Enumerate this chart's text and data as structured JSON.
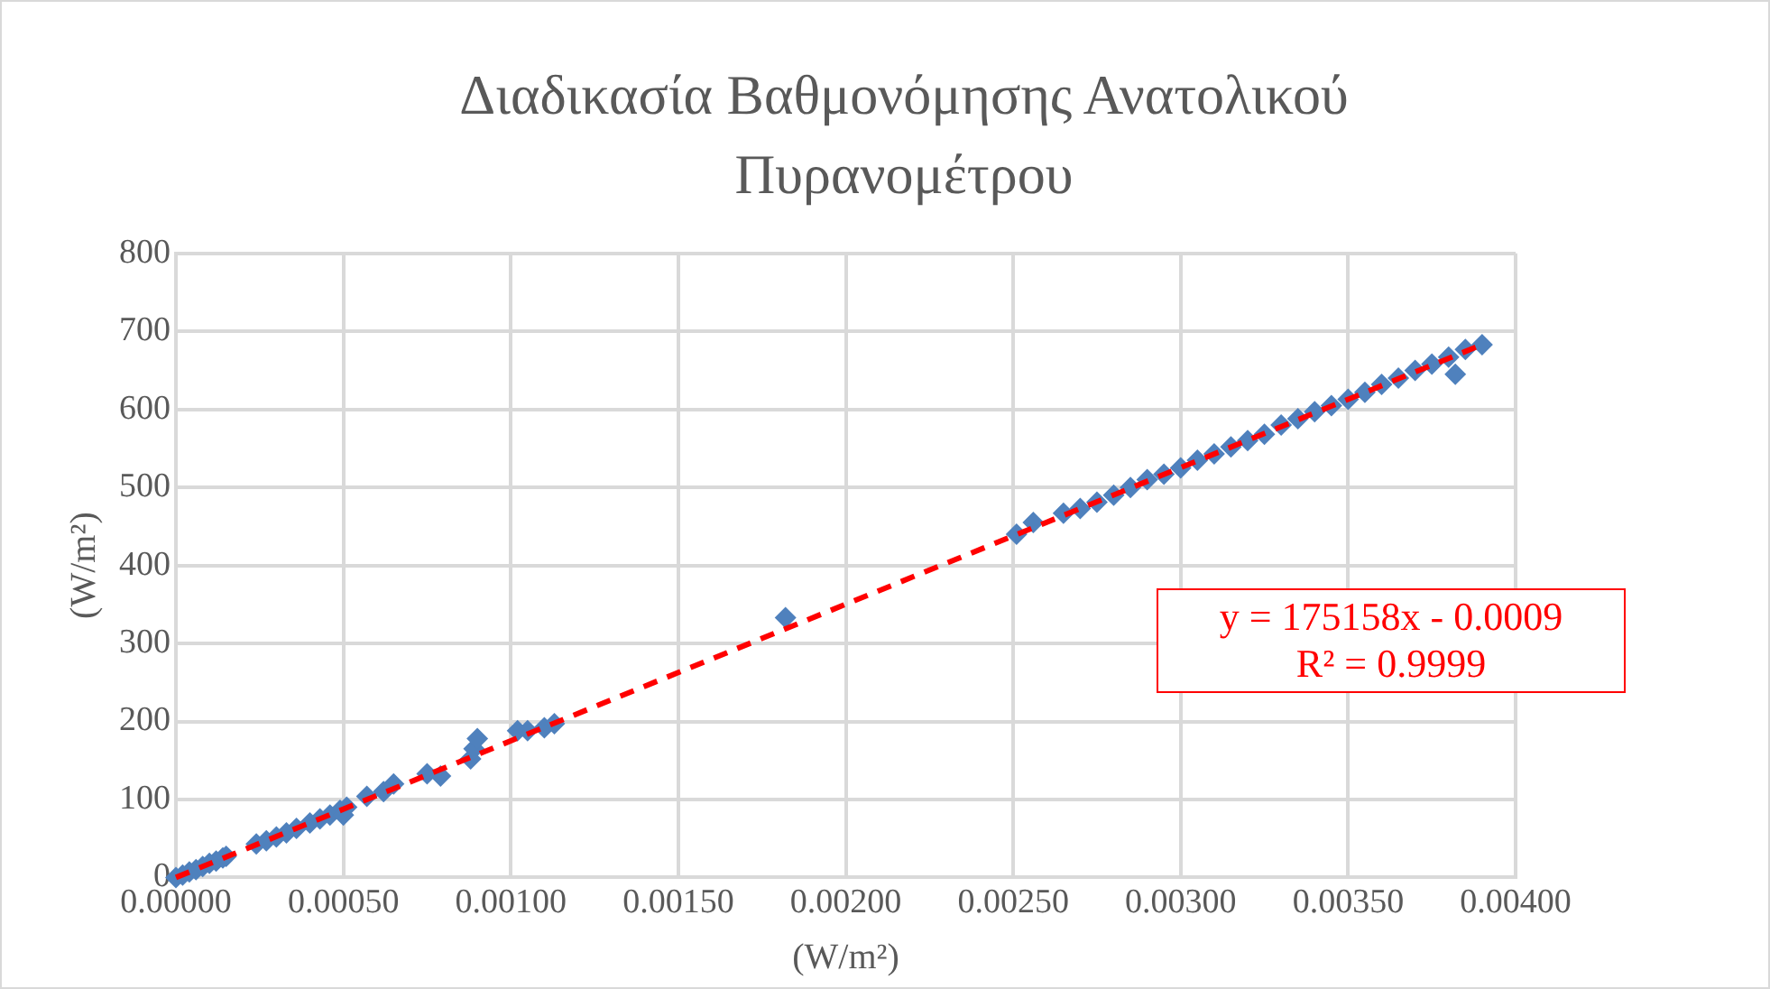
{
  "chart_data": {
    "type": "scatter",
    "title": "Διαδικασία Βαθμονόμησης Ανατολικού Πυρανομέτρου",
    "xlabel": "(W/m²)",
    "ylabel": "(W/m²)",
    "xlim": [
      0,
      0.004
    ],
    "xticks": [
      {
        "value": 0,
        "label": "0.00000"
      },
      {
        "value": 0.0005,
        "label": "0.00050"
      },
      {
        "value": 0.001,
        "label": "0.00100"
      },
      {
        "value": 0.0015,
        "label": "0.00150"
      },
      {
        "value": 0.002,
        "label": "0.00200"
      },
      {
        "value": 0.0025,
        "label": "0.00250"
      },
      {
        "value": 0.003,
        "label": "0.00300"
      },
      {
        "value": 0.0035,
        "label": "0.00350"
      },
      {
        "value": 0.004,
        "label": "0.00400"
      }
    ],
    "ylim": [
      0,
      800
    ],
    "yticks": [
      0,
      100,
      200,
      300,
      400,
      500,
      600,
      700,
      800
    ],
    "grid": true,
    "legend": false,
    "marker": "diamond",
    "series": [
      {
        "color": "#4f81bd",
        "x": [
          0,
          2e-05,
          4e-05,
          6e-05,
          8e-05,
          0.0001,
          0.00012,
          0.00014,
          0.00015,
          0.00024,
          0.00027,
          0.0003,
          0.00033,
          0.00036,
          0.0004,
          0.00043,
          0.00046,
          0.00049,
          0.0005,
          0.00051,
          0.00057,
          0.00062,
          0.00065,
          0.00075,
          0.00079,
          0.00088,
          0.00089,
          0.0009,
          0.00102,
          0.00105,
          0.0011,
          0.00113,
          0.00182,
          0.00251,
          0.00256,
          0.00265,
          0.0027,
          0.00275,
          0.0028,
          0.00285,
          0.0029,
          0.00295,
          0.003,
          0.00305,
          0.0031,
          0.00315,
          0.0032,
          0.00325,
          0.0033,
          0.00335,
          0.0034,
          0.00345,
          0.0035,
          0.00355,
          0.0036,
          0.00365,
          0.0037,
          0.00375,
          0.0038,
          0.00382,
          0.00385,
          0.0039
        ],
        "values": [
          0,
          3,
          7,
          10,
          14,
          18,
          21,
          25,
          27,
          43,
          47,
          52,
          57,
          63,
          70,
          75,
          80,
          86,
          80,
          90,
          104,
          110,
          120,
          133,
          130,
          152,
          165,
          178,
          188,
          188,
          192,
          197,
          333,
          440,
          455,
          467,
          473,
          481,
          490,
          500,
          510,
          517,
          525,
          535,
          543,
          552,
          560,
          568,
          580,
          588,
          597,
          605,
          613,
          622,
          632,
          640,
          650,
          658,
          667,
          645,
          677,
          683
        ]
      },
      {
        "type": "line",
        "color": "#ff0000",
        "line_style": "dashed",
        "marker": "none",
        "x": [
          0,
          0.0039
        ],
        "values": [
          0,
          683
        ]
      }
    ],
    "annotations": [
      "y = 175158x - 0.0009",
      "R² = 0.9999"
    ]
  }
}
